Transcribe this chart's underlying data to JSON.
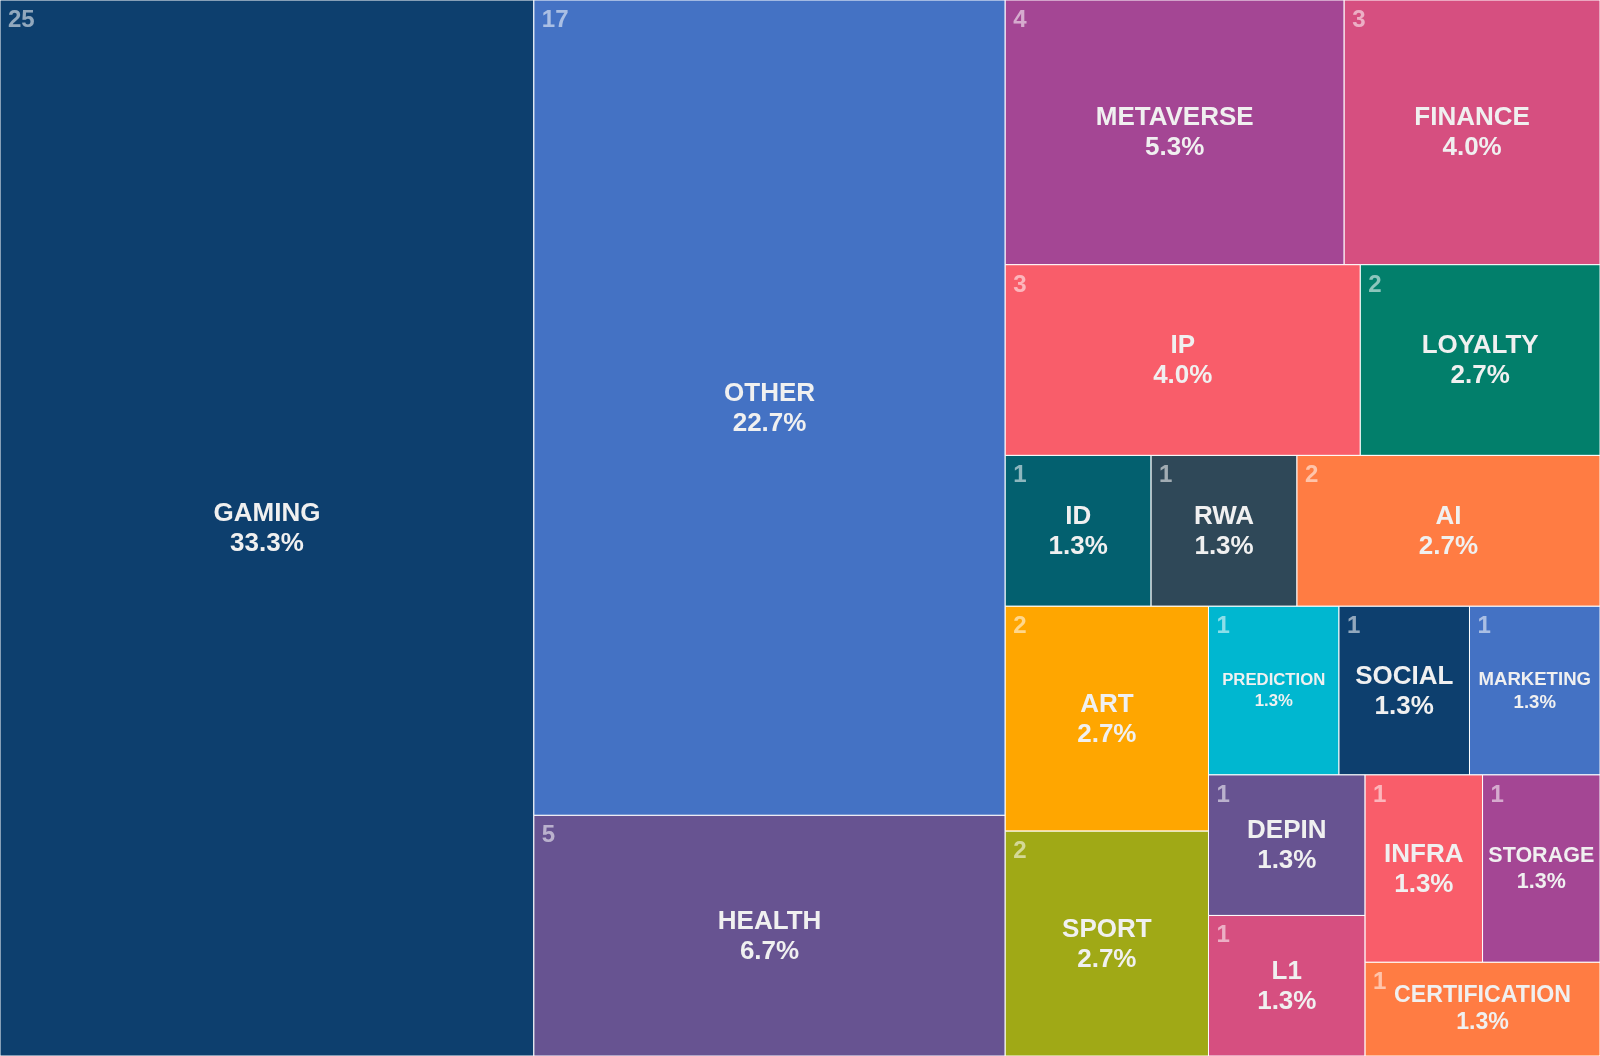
{
  "chart_data": {
    "type": "other",
    "categories": [
      "GAMING",
      "OTHER",
      "HEALTH",
      "METAVERSE",
      "FINANCE",
      "IP",
      "LOYALTY",
      "ID",
      "RWA",
      "AI",
      "ART",
      "SPORT",
      "PREDICTION",
      "SOCIAL",
      "MARKETING",
      "DEPIN",
      "L1",
      "INFRA",
      "STORAGE",
      "CERTIFICATION"
    ],
    "values": [
      33.3,
      22.7,
      6.7,
      5.3,
      4.0,
      4.0,
      2.7,
      1.3,
      1.3,
      2.7,
      2.7,
      2.7,
      1.3,
      1.3,
      1.3,
      1.3,
      1.3,
      1.3,
      1.3,
      1.3
    ],
    "annotations": [
      "25",
      "17",
      "5",
      "4",
      "3",
      "3",
      "2",
      "1",
      "1",
      "2",
      "2",
      "2",
      "1",
      "1",
      "1",
      "1",
      "1",
      "1",
      "1",
      "1"
    ],
    "value_labels": [
      "33.3%",
      "22.7%",
      "6.7%",
      "5.3%",
      "4.0%",
      "4.0%",
      "2.7%",
      "1.3%",
      "1.3%",
      "2.7%",
      "2.7%",
      "2.7%",
      "1.3%",
      "1.3%",
      "1.3%",
      "1.3%",
      "1.3%",
      "1.3%",
      "1.3%",
      "1.3%"
    ],
    "colors": [
      "#0d3f6e",
      "#4472c4",
      "#675391",
      "#a44694",
      "#d64f80",
      "#f95d6a",
      "#027f6b",
      "#03606f",
      "#2f4858",
      "#ff7c43",
      "#ffa600",
      "#a0a916",
      "#00b7d0",
      "#0d3f6e",
      "#4472c4",
      "#675391",
      "#d64f80",
      "#f95d6a",
      "#a44694",
      "#ff7c43"
    ]
  }
}
